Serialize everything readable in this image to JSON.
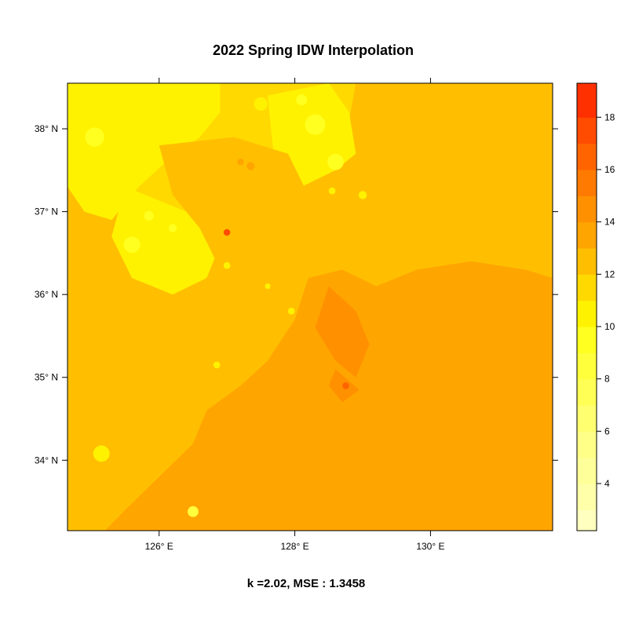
{
  "chart_data": {
    "type": "heatmap",
    "title": "2022 Spring IDW Interpolation",
    "subtitle": "k =2.02, MSE : 1.3458",
    "xlabel": "",
    "ylabel": "",
    "xlim": [
      124.65,
      131.8
    ],
    "ylim": [
      33.15,
      38.55
    ],
    "x_ticks": [
      {
        "value": 126,
        "label": "126° E"
      },
      {
        "value": 128,
        "label": "128° E"
      },
      {
        "value": 130,
        "label": "130° E"
      }
    ],
    "y_ticks": [
      {
        "value": 34,
        "label": "34° N"
      },
      {
        "value": 35,
        "label": "35° N"
      },
      {
        "value": 36,
        "label": "36° N"
      },
      {
        "value": 37,
        "label": "37° N"
      },
      {
        "value": 38,
        "label": "38° N"
      }
    ],
    "grid": false,
    "legend": {
      "placement": "right",
      "ticks": [
        4,
        6,
        8,
        10,
        12,
        14,
        16,
        18
      ],
      "bins": [
        {
          "min": 2.2,
          "max": 3.0,
          "color": "#ffffbf"
        },
        {
          "min": 3.0,
          "max": 4.0,
          "color": "#ffffaa"
        },
        {
          "min": 4.0,
          "max": 5.0,
          "color": "#ffff99"
        },
        {
          "min": 5.0,
          "max": 6.0,
          "color": "#ffff88"
        },
        {
          "min": 6.0,
          "max": 7.0,
          "color": "#ffff70"
        },
        {
          "min": 7.0,
          "max": 8.0,
          "color": "#ffff55"
        },
        {
          "min": 8.0,
          "max": 9.0,
          "color": "#ffff3c"
        },
        {
          "min": 9.0,
          "max": 10.0,
          "color": "#ffff20"
        },
        {
          "min": 10.0,
          "max": 11.0,
          "color": "#fff200"
        },
        {
          "min": 11.0,
          "max": 12.0,
          "color": "#ffd900"
        },
        {
          "min": 12.0,
          "max": 13.0,
          "color": "#ffbf00"
        },
        {
          "min": 13.0,
          "max": 14.0,
          "color": "#ffa500"
        },
        {
          "min": 14.0,
          "max": 15.0,
          "color": "#ff9000"
        },
        {
          "min": 15.0,
          "max": 16.0,
          "color": "#ff7a00"
        },
        {
          "min": 16.0,
          "max": 17.0,
          "color": "#ff6400"
        },
        {
          "min": 17.0,
          "max": 18.0,
          "color": "#ff4c00"
        },
        {
          "min": 18.0,
          "max": 19.3,
          "color": "#ff3000"
        }
      ]
    },
    "regions": [
      {
        "value": 11.5,
        "points": [
          [
            124.65,
            38.55
          ],
          [
            128.9,
            38.55
          ],
          [
            128.8,
            38.1
          ],
          [
            128.4,
            37.8
          ],
          [
            128.1,
            37.6
          ],
          [
            127.7,
            37.4
          ],
          [
            127.3,
            37.0
          ],
          [
            126.9,
            36.7
          ],
          [
            126.4,
            36.5
          ],
          [
            125.9,
            36.6
          ],
          [
            125.5,
            37.0
          ],
          [
            125.0,
            37.4
          ],
          [
            124.65,
            37.5
          ]
        ]
      },
      {
        "value": 10.5,
        "points": [
          [
            124.65,
            38.55
          ],
          [
            126.9,
            38.55
          ],
          [
            126.9,
            38.2
          ],
          [
            126.6,
            37.9
          ],
          [
            126.1,
            37.6
          ],
          [
            125.7,
            37.3
          ],
          [
            125.3,
            36.9
          ],
          [
            124.9,
            37.0
          ],
          [
            124.65,
            37.3
          ]
        ]
      },
      {
        "value": 10.5,
        "points": [
          [
            127.6,
            38.4
          ],
          [
            128.5,
            38.55
          ],
          [
            128.8,
            38.2
          ],
          [
            128.9,
            37.7
          ],
          [
            128.6,
            37.5
          ],
          [
            128.1,
            37.3
          ],
          [
            127.7,
            37.6
          ]
        ]
      },
      {
        "value": 10.5,
        "points": [
          [
            125.5,
            37.3
          ],
          [
            126.4,
            37.0
          ],
          [
            126.9,
            36.6
          ],
          [
            126.7,
            36.2
          ],
          [
            126.2,
            36.0
          ],
          [
            125.6,
            36.2
          ],
          [
            125.3,
            36.7
          ]
        ]
      },
      {
        "value": 12.5,
        "points": [
          [
            126.0,
            37.8
          ],
          [
            127.1,
            37.9
          ],
          [
            127.9,
            37.7
          ],
          [
            128.2,
            37.2
          ],
          [
            127.9,
            36.7
          ],
          [
            127.6,
            36.2
          ],
          [
            127.3,
            35.5
          ],
          [
            126.8,
            35.0
          ],
          [
            126.4,
            34.6
          ],
          [
            126.2,
            35.1
          ],
          [
            126.5,
            35.8
          ],
          [
            126.9,
            36.3
          ],
          [
            126.6,
            36.8
          ],
          [
            126.2,
            37.2
          ]
        ]
      },
      {
        "value": 13.5,
        "points": [
          [
            131.8,
            36.2
          ],
          [
            131.4,
            36.3
          ],
          [
            130.6,
            36.4
          ],
          [
            129.8,
            36.3
          ],
          [
            129.2,
            36.1
          ],
          [
            128.7,
            36.3
          ],
          [
            128.2,
            36.2
          ],
          [
            128.0,
            35.7
          ],
          [
            127.6,
            35.2
          ],
          [
            127.2,
            34.9
          ],
          [
            126.7,
            34.6
          ],
          [
            126.5,
            34.2
          ],
          [
            126.0,
            33.8
          ],
          [
            125.5,
            33.4
          ],
          [
            125.2,
            33.15
          ],
          [
            131.8,
            33.15
          ]
        ]
      },
      {
        "value": 14.5,
        "points": [
          [
            128.5,
            36.1
          ],
          [
            128.9,
            35.8
          ],
          [
            129.1,
            35.4
          ],
          [
            128.9,
            35.0
          ],
          [
            128.6,
            35.2
          ],
          [
            128.3,
            35.6
          ]
        ]
      },
      {
        "value": 14.5,
        "points": [
          [
            128.6,
            35.1
          ],
          [
            128.95,
            34.85
          ],
          [
            128.7,
            34.7
          ],
          [
            128.5,
            34.9
          ]
        ]
      }
    ],
    "hotspots": [
      {
        "x": 125.05,
        "y": 37.9,
        "r": 0.14,
        "value": 9.5
      },
      {
        "x": 125.6,
        "y": 36.6,
        "r": 0.12,
        "value": 9.5
      },
      {
        "x": 125.85,
        "y": 36.95,
        "r": 0.07,
        "value": 9.5
      },
      {
        "x": 126.2,
        "y": 36.8,
        "r": 0.06,
        "value": 9.5
      },
      {
        "x": 127.0,
        "y": 36.75,
        "r": 0.05,
        "value": 17.5
      },
      {
        "x": 126.5,
        "y": 33.38,
        "r": 0.08,
        "value": 8.5
      },
      {
        "x": 125.15,
        "y": 34.08,
        "r": 0.12,
        "value": 10.5
      },
      {
        "x": 130.9,
        "y": 37.55,
        "r": 0.14,
        "value": 12.5
      },
      {
        "x": 128.3,
        "y": 38.05,
        "r": 0.15,
        "value": 9.5
      },
      {
        "x": 128.6,
        "y": 37.6,
        "r": 0.12,
        "value": 9.5
      },
      {
        "x": 127.5,
        "y": 38.3,
        "r": 0.1,
        "value": 10.5
      },
      {
        "x": 128.1,
        "y": 38.35,
        "r": 0.08,
        "value": 9.5
      },
      {
        "x": 127.35,
        "y": 37.55,
        "r": 0.06,
        "value": 13.5
      },
      {
        "x": 127.2,
        "y": 37.6,
        "r": 0.05,
        "value": 13.5
      },
      {
        "x": 128.7,
        "y": 35.85,
        "r": 0.09,
        "value": 14.5
      },
      {
        "x": 128.75,
        "y": 34.9,
        "r": 0.05,
        "value": 16.5
      },
      {
        "x": 127.35,
        "y": 34.03,
        "r": 0.07,
        "value": 13.5
      },
      {
        "x": 127.0,
        "y": 36.35,
        "r": 0.05,
        "value": 10.5
      },
      {
        "x": 127.95,
        "y": 35.8,
        "r": 0.05,
        "value": 10.5
      },
      {
        "x": 126.85,
        "y": 35.15,
        "r": 0.05,
        "value": 10.5
      },
      {
        "x": 127.6,
        "y": 36.1,
        "r": 0.04,
        "value": 10.5
      },
      {
        "x": 129.3,
        "y": 36.05,
        "r": 0.05,
        "value": 13.5
      },
      {
        "x": 129.0,
        "y": 37.2,
        "r": 0.06,
        "value": 10.5
      },
      {
        "x": 128.55,
        "y": 37.25,
        "r": 0.05,
        "value": 10.5
      }
    ]
  }
}
